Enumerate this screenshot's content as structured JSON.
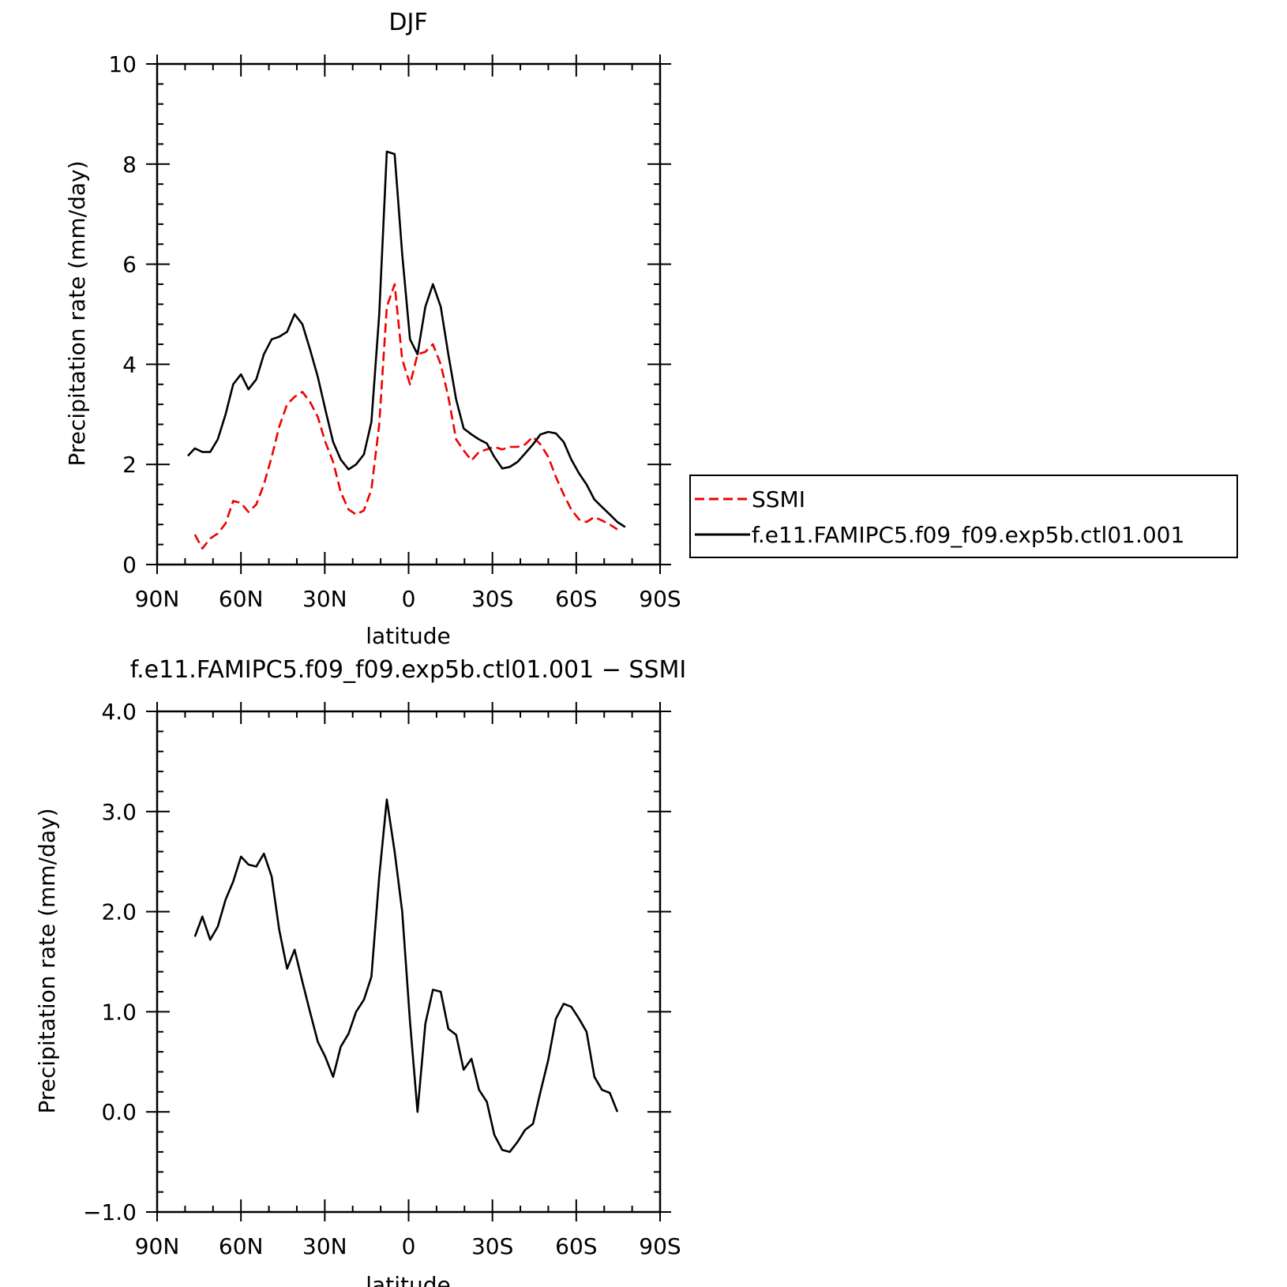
{
  "chart_data": [
    {
      "type": "line",
      "title": "DJF",
      "xlabel": "latitude",
      "ylabel": "Precipitation rate (mm/day)",
      "xlim": [
        90,
        -90
      ],
      "ylim": [
        0,
        10
      ],
      "x_ticks": [
        90,
        60,
        30,
        0,
        -30,
        -60,
        -90
      ],
      "x_tick_labels": [
        "90N",
        "60N",
        "30N",
        "0",
        "30S",
        "60S",
        "90S"
      ],
      "y_ticks": [
        0,
        2,
        4,
        6,
        8,
        10
      ],
      "y_tick_labels": [
        "0",
        "2",
        "4",
        "6",
        "8",
        "10"
      ],
      "legend_position": "right",
      "series": [
        {
          "name": "SSMI",
          "color": "#ee0000",
          "dash": true,
          "x": [
            76.5,
            73.8,
            71,
            68.3,
            65.5,
            62.8,
            60,
            57.3,
            54.5,
            51.8,
            49,
            46.3,
            43.5,
            40.8,
            38,
            35.3,
            32.5,
            29.8,
            27,
            24.3,
            21.5,
            18.8,
            16,
            13.3,
            10.5,
            7.8,
            5,
            2.3,
            -0.5,
            -3.2,
            -6,
            -8.7,
            -11.5,
            -14.2,
            -17,
            -19.7,
            -22.5,
            -25.2,
            -28,
            -30.7,
            -33.5,
            -36.2,
            -39,
            -41.7,
            -44.5,
            -47.2,
            -50,
            -52.7,
            -55.5,
            -58.2,
            -61,
            -63.7,
            -66.5,
            -69.2,
            -72,
            -74.7
          ],
          "y": [
            0.6,
            0.32,
            0.52,
            0.62,
            0.82,
            1.27,
            1.23,
            1.05,
            1.2,
            1.6,
            2.15,
            2.75,
            3.2,
            3.35,
            3.45,
            3.25,
            2.95,
            2.45,
            2.05,
            1.45,
            1.1,
            1.0,
            1.08,
            1.5,
            2.8,
            5.15,
            5.6,
            4.1,
            3.6,
            4.2,
            4.25,
            4.4,
            4.0,
            3.35,
            2.5,
            2.28,
            2.08,
            2.25,
            2.3,
            2.35,
            2.3,
            2.35,
            2.35,
            2.4,
            2.55,
            2.4,
            2.15,
            1.75,
            1.4,
            1.1,
            0.9,
            0.85,
            0.95,
            0.88,
            0.8,
            0.7
          ]
        },
        {
          "name": "f.e11.FAMIPC5.f09_f09.exp5b.ctl01.001",
          "color": "#000000",
          "dash": false,
          "x": [
            79,
            76.5,
            73.8,
            71,
            68.3,
            65.5,
            62.8,
            60,
            57.3,
            54.5,
            51.8,
            49,
            46.3,
            43.5,
            40.8,
            38,
            35.3,
            32.5,
            29.8,
            27,
            24.3,
            21.5,
            18.8,
            16,
            13.3,
            10.5,
            7.8,
            5,
            2.3,
            -0.5,
            -3.2,
            -6,
            -8.7,
            -11.5,
            -14.2,
            -17,
            -19.7,
            -22.5,
            -25.2,
            -28,
            -30.7,
            -33.5,
            -36.2,
            -39,
            -41.7,
            -44.5,
            -47.2,
            -50,
            -52.7,
            -55.5,
            -58.2,
            -61,
            -63.7,
            -66.5,
            -69.2,
            -72,
            -74.7,
            -77.5
          ],
          "y": [
            2.17,
            2.32,
            2.25,
            2.25,
            2.5,
            3.0,
            3.6,
            3.8,
            3.5,
            3.7,
            4.2,
            4.5,
            4.55,
            4.65,
            5.0,
            4.8,
            4.3,
            3.75,
            3.1,
            2.45,
            2.1,
            1.9,
            2.0,
            2.2,
            2.85,
            5.0,
            8.25,
            8.2,
            6.2,
            4.5,
            4.2,
            5.15,
            5.6,
            5.15,
            4.2,
            3.3,
            2.72,
            2.6,
            2.5,
            2.42,
            2.15,
            1.92,
            1.95,
            2.05,
            2.22,
            2.4,
            2.6,
            2.65,
            2.62,
            2.45,
            2.1,
            1.82,
            1.6,
            1.3,
            1.15,
            1.0,
            0.85,
            0.75
          ]
        }
      ]
    },
    {
      "type": "line",
      "title": "f.e11.FAMIPC5.f09_f09.exp5b.ctl01.001 − SSMI",
      "xlabel": "latitude",
      "ylabel": "Precipitation rate (mm/day)",
      "xlim": [
        90,
        -90
      ],
      "ylim": [
        -1.0,
        4.0
      ],
      "x_ticks": [
        90,
        60,
        30,
        0,
        -30,
        -60,
        -90
      ],
      "x_tick_labels": [
        "90N",
        "60N",
        "30N",
        "0",
        "30S",
        "60S",
        "90S"
      ],
      "y_ticks": [
        -1.0,
        0.0,
        1.0,
        2.0,
        3.0,
        4.0
      ],
      "y_tick_labels": [
        "−1.0",
        "0.0",
        "1.0",
        "2.0",
        "3.0",
        "4.0"
      ],
      "series": [
        {
          "color": "#000000",
          "dash": false,
          "x": [
            76.5,
            73.8,
            71,
            68.3,
            65.5,
            62.8,
            60,
            57.3,
            54.5,
            51.8,
            49,
            46.3,
            43.5,
            40.8,
            38,
            35.3,
            32.5,
            29.8,
            27,
            24.3,
            21.5,
            18.8,
            16,
            13.3,
            10.5,
            7.8,
            5,
            2.3,
            -0.5,
            -3.2,
            -6,
            -8.7,
            -11.5,
            -14.2,
            -17,
            -19.7,
            -22.5,
            -25.2,
            -28,
            -30.7,
            -33.5,
            -36.2,
            -39,
            -41.7,
            -44.5,
            -47.2,
            -50,
            -52.7,
            -55.5,
            -58.2,
            -61,
            -63.7,
            -66.5,
            -69.2,
            -72,
            -74.7
          ],
          "y": [
            1.75,
            1.95,
            1.72,
            1.85,
            2.12,
            2.3,
            2.55,
            2.47,
            2.45,
            2.58,
            2.35,
            1.82,
            1.43,
            1.62,
            1.3,
            1.0,
            0.7,
            0.55,
            0.35,
            0.65,
            0.78,
            1.0,
            1.12,
            1.35,
            2.35,
            3.12,
            2.6,
            2.0,
            0.9,
            0.0,
            0.88,
            1.22,
            1.2,
            0.83,
            0.77,
            0.42,
            0.53,
            0.22,
            0.1,
            -0.23,
            -0.38,
            -0.4,
            -0.3,
            -0.18,
            -0.12,
            0.2,
            0.52,
            0.93,
            1.08,
            1.05,
            0.93,
            0.8,
            0.35,
            0.22,
            0.19,
            0.0
          ]
        }
      ]
    }
  ]
}
